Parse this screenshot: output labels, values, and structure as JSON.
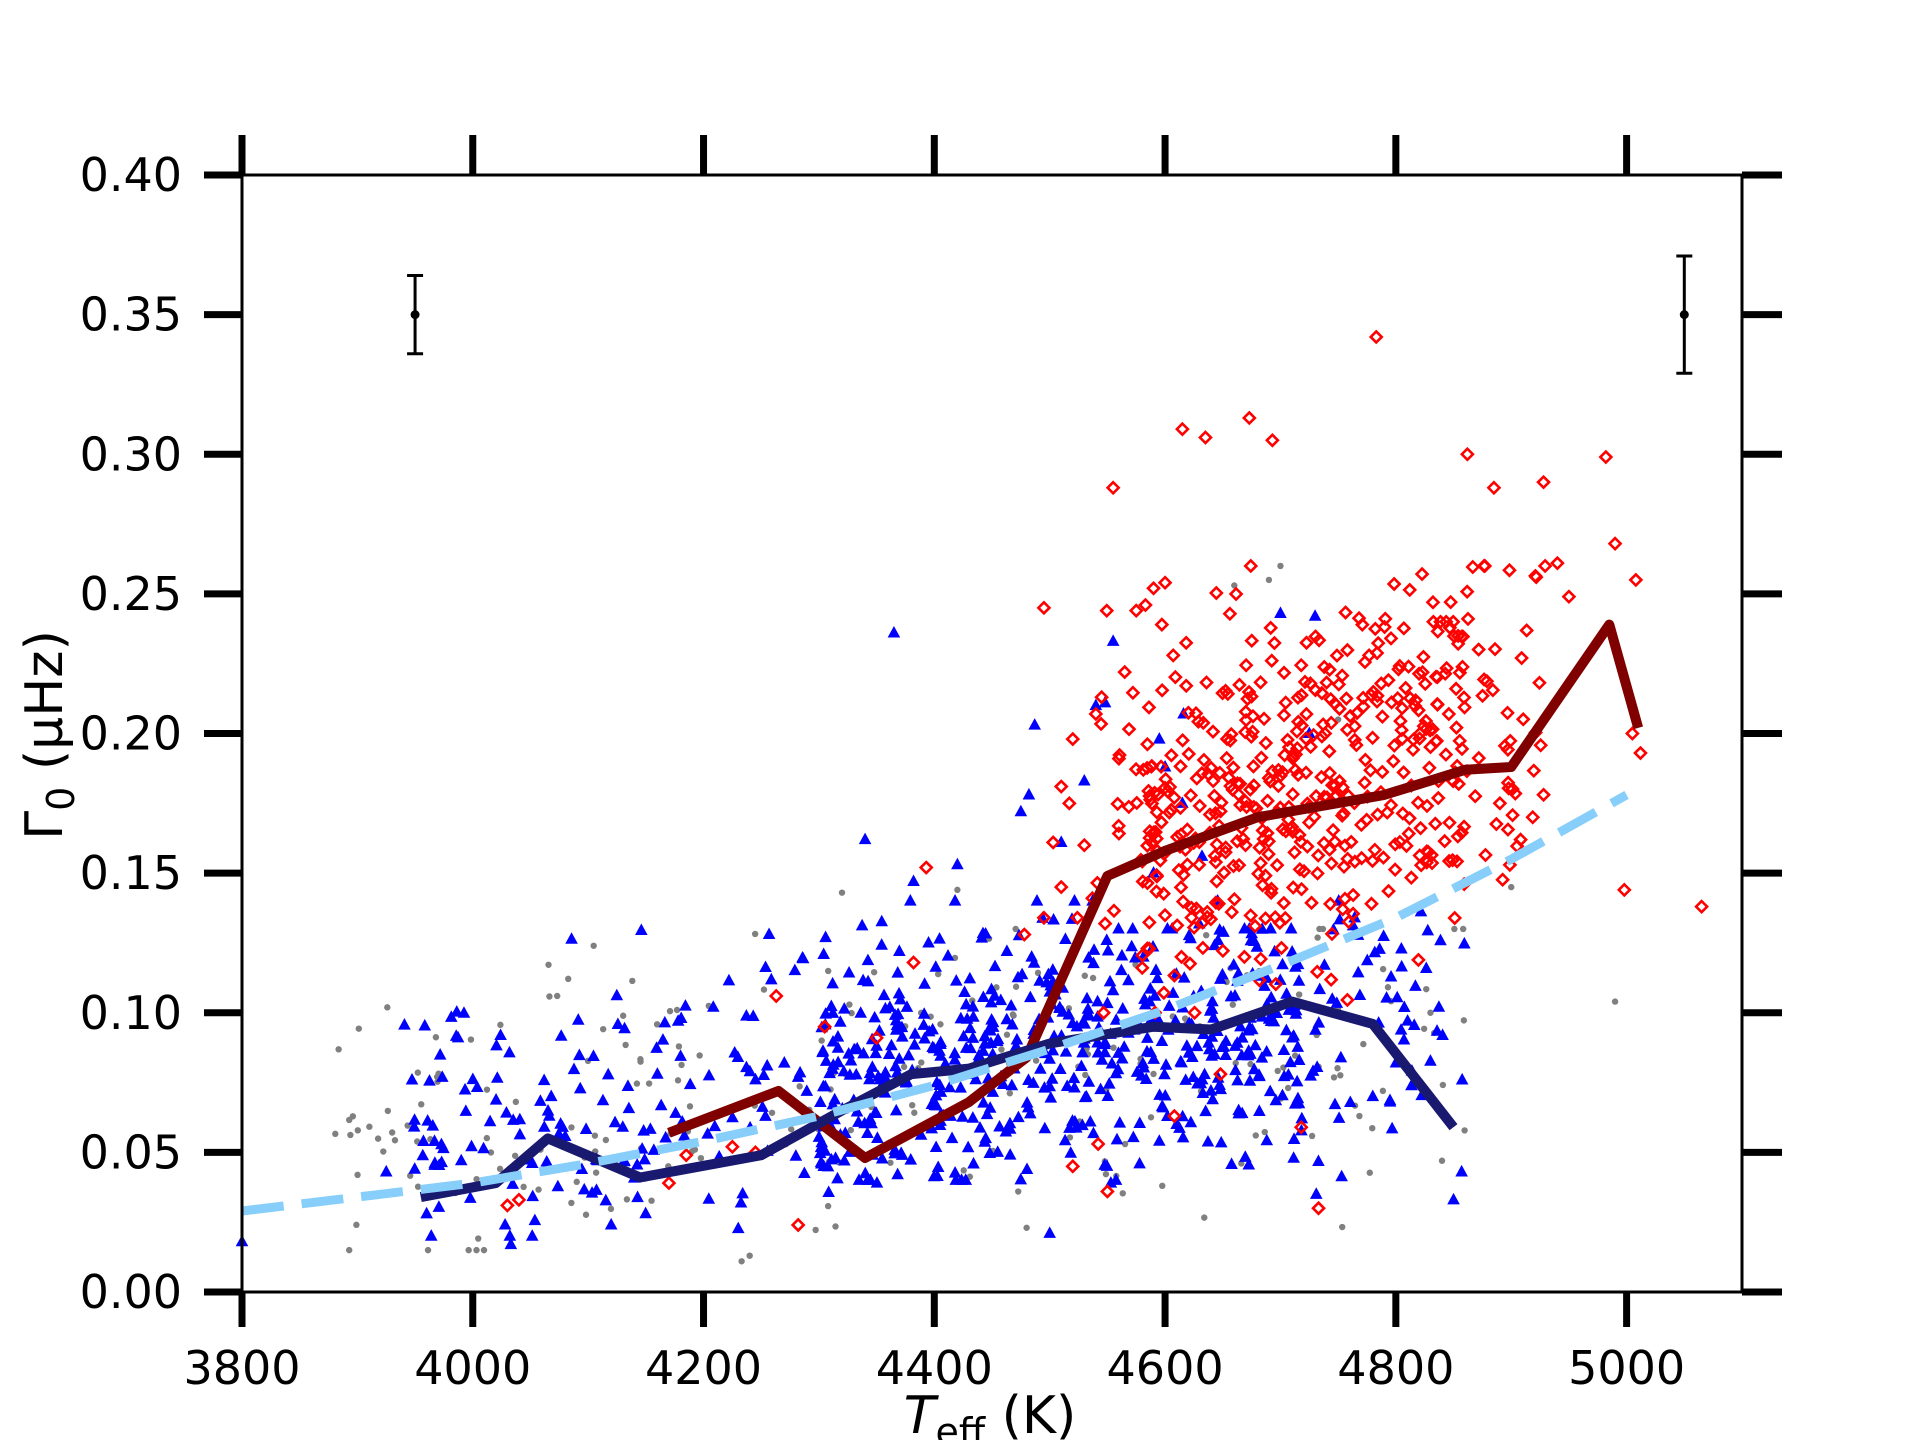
{
  "chart_data": {
    "type": "scatter",
    "title": "",
    "xlim": [
      3800,
      5100
    ],
    "ylim": [
      0.0,
      0.4
    ],
    "x_ticks": [
      3800,
      4000,
      4200,
      4400,
      4600,
      4800,
      5000
    ],
    "y_ticks": [
      0.0,
      0.05,
      0.1,
      0.15,
      0.2,
      0.25,
      0.3,
      0.35,
      0.4
    ],
    "x_tick_labels": [
      "3800",
      "4000",
      "4200",
      "4400",
      "4600",
      "4800",
      "5000"
    ],
    "y_tick_labels": [
      "0.00",
      "0.05",
      "0.10",
      "0.15",
      "0.20",
      "0.25",
      "0.30",
      "0.35",
      "0.40"
    ],
    "xlabel": {
      "symbol": "T",
      "subscript": "eff",
      "unit": " (K)"
    },
    "ylabel": {
      "symbol": "Γ",
      "subscript": "0",
      "unit": " (μHz)"
    },
    "grid": false,
    "colors": {
      "red_clump_markers": "#ff0000",
      "rgb_markers": "#0000ff",
      "other_markers": "#808080",
      "red_clump_trend": "#800000",
      "rgb_trend": "#191970",
      "fit": "#87cefa",
      "errorbar": "#000000"
    },
    "trend_lines": [
      {
        "style": "solid",
        "color": "#800000",
        "points": [
          [
            4170,
            0.057
          ],
          [
            4265,
            0.072
          ],
          [
            4340,
            0.048
          ],
          [
            4430,
            0.068
          ],
          [
            4480,
            0.084
          ],
          [
            4550,
            0.149
          ],
          [
            4600,
            0.158
          ],
          [
            4680,
            0.17
          ],
          [
            4790,
            0.178
          ],
          [
            4860,
            0.187
          ],
          [
            4900,
            0.188
          ],
          [
            4985,
            0.239
          ],
          [
            5010,
            0.202
          ]
        ]
      },
      {
        "style": "solid",
        "color": "#191970",
        "points": [
          [
            3955,
            0.034
          ],
          [
            4020,
            0.039
          ],
          [
            4065,
            0.055
          ],
          [
            4145,
            0.041
          ],
          [
            4250,
            0.049
          ],
          [
            4320,
            0.065
          ],
          [
            4380,
            0.078
          ],
          [
            4430,
            0.08
          ],
          [
            4500,
            0.089
          ],
          [
            4590,
            0.095
          ],
          [
            4640,
            0.094
          ],
          [
            4710,
            0.104
          ],
          [
            4780,
            0.096
          ],
          [
            4850,
            0.059
          ]
        ]
      },
      {
        "style": "dashed",
        "color": "#87cefa",
        "points": [
          [
            3800,
            0.029
          ],
          [
            3900,
            0.034
          ],
          [
            4000,
            0.039
          ],
          [
            4100,
            0.046
          ],
          [
            4200,
            0.054
          ],
          [
            4300,
            0.063
          ],
          [
            4400,
            0.074
          ],
          [
            4500,
            0.087
          ],
          [
            4600,
            0.101
          ],
          [
            4700,
            0.117
          ],
          [
            4800,
            0.134
          ],
          [
            4900,
            0.155
          ],
          [
            5000,
            0.178
          ]
        ]
      }
    ],
    "error_bars": [
      {
        "x": 3950,
        "y": 0.35,
        "err_low": 0.014,
        "err_high": 0.014
      },
      {
        "x": 5050,
        "y": 0.35,
        "err_low": 0.021,
        "err_high": 0.021
      }
    ],
    "scatter_groups": [
      {
        "marker": "diamond-open",
        "color": "#ff0000",
        "count": 520,
        "ranges": [
          [
            4540,
            4930,
            0.1,
            0.26
          ],
          [
            4580,
            4860,
            0.12,
            0.24
          ]
        ],
        "explicit": [
          [
            4495,
            0.245
          ],
          [
            4555,
            0.288
          ],
          [
            4615,
            0.309
          ],
          [
            4635,
            0.306
          ],
          [
            4673,
            0.313
          ],
          [
            4693,
            0.305
          ],
          [
            4783,
            0.342
          ],
          [
            4862,
            0.3
          ],
          [
            4885,
            0.288
          ],
          [
            4982,
            0.299
          ],
          [
            4928,
            0.29
          ],
          [
            5008,
            0.255
          ],
          [
            5065,
            0.138
          ],
          [
            4990,
            0.268
          ],
          [
            5005,
            0.2
          ],
          [
            5012,
            0.193
          ],
          [
            4998,
            0.144
          ],
          [
            4940,
            0.261
          ],
          [
            4950,
            0.249
          ],
          [
            4733,
            0.03
          ],
          [
            4718,
            0.059
          ],
          [
            4648,
            0.078
          ],
          [
            4608,
            0.063
          ],
          [
            4520,
            0.045
          ],
          [
            4542,
            0.053
          ],
          [
            4550,
            0.036
          ],
          [
            4282,
            0.024
          ],
          [
            4263,
            0.106
          ],
          [
            4382,
            0.118
          ],
          [
            4393,
            0.152
          ],
          [
            4350,
            0.091
          ],
          [
            4305,
            0.095
          ],
          [
            4030,
            0.031
          ],
          [
            4040,
            0.033
          ],
          [
            4170,
            0.039
          ],
          [
            4225,
            0.052
          ],
          [
            4245,
            0.05
          ],
          [
            4185,
            0.049
          ],
          [
            4510,
            0.181
          ],
          [
            4520,
            0.198
          ],
          [
            4540,
            0.207
          ],
          [
            4545,
            0.213
          ],
          [
            4560,
            0.191
          ],
          [
            4565,
            0.222
          ],
          [
            4575,
            0.244
          ],
          [
            4583,
            0.246
          ],
          [
            4590,
            0.252
          ],
          [
            4600,
            0.254
          ],
          [
            4510,
            0.145
          ],
          [
            4495,
            0.134
          ],
          [
            4503,
            0.161
          ],
          [
            4517,
            0.175
          ],
          [
            4530,
            0.16
          ],
          [
            4537,
            0.141
          ],
          [
            4524,
            0.134
          ],
          [
            4478,
            0.128
          ]
        ]
      },
      {
        "marker": "triangle",
        "color": "#0000ff",
        "count": 760,
        "ranges": [
          [
            3940,
            4860,
            0.02,
            0.14
          ],
          [
            4300,
            4720,
            0.04,
            0.13
          ]
        ],
        "explicit": [
          [
            3800,
            0.018
          ],
          [
            3925,
            0.043
          ],
          [
            3960,
            0.028
          ],
          [
            3975,
            0.036
          ],
          [
            3990,
            0.047
          ],
          [
            4015,
            0.061
          ],
          [
            4028,
            0.024
          ],
          [
            4033,
            0.017
          ],
          [
            4062,
            0.059
          ],
          [
            4068,
            0.07
          ],
          [
            4130,
            0.059
          ],
          [
            4160,
            0.078
          ],
          [
            4245,
            0.076
          ],
          [
            4270,
            0.082
          ],
          [
            4340,
            0.162
          ],
          [
            4350,
            0.088
          ],
          [
            4365,
            0.236
          ],
          [
            4382,
            0.147
          ],
          [
            4395,
            0.125
          ],
          [
            4420,
            0.153
          ],
          [
            4475,
            0.172
          ],
          [
            4487,
            0.203
          ],
          [
            4482,
            0.178
          ],
          [
            4510,
            0.161
          ],
          [
            4530,
            0.183
          ],
          [
            4540,
            0.21
          ],
          [
            4548,
            0.211
          ],
          [
            4555,
            0.233
          ],
          [
            4590,
            0.15
          ],
          [
            4616,
            0.207
          ],
          [
            4632,
            0.156
          ],
          [
            4700,
            0.243
          ],
          [
            4730,
            0.242
          ],
          [
            4725,
            0.2
          ],
          [
            4615,
            0.175
          ],
          [
            4600,
            0.188
          ],
          [
            4595,
            0.198
          ],
          [
            4780,
            0.07
          ],
          [
            4795,
            0.068
          ],
          [
            4850,
            0.033
          ],
          [
            4857,
            0.043
          ],
          [
            4500,
            0.021
          ],
          [
            4553,
            0.039
          ],
          [
            4595,
            0.054
          ],
          [
            4610,
            0.06
          ]
        ]
      },
      {
        "marker": "dot",
        "color": "#808080",
        "count": 230,
        "ranges": [
          [
            3880,
            4860,
            0.015,
            0.13
          ]
        ],
        "explicit": [
          [
            4233,
            0.011
          ],
          [
            4240,
            0.013
          ],
          [
            4320,
            0.143
          ],
          [
            4420,
            0.144
          ],
          [
            4480,
            0.023
          ],
          [
            4660,
            0.253
          ],
          [
            4690,
            0.255
          ],
          [
            4700,
            0.26
          ],
          [
            4750,
            0.205
          ],
          [
            4990,
            0.104
          ],
          [
            4900,
            0.145
          ],
          [
            4840,
            0.047
          ],
          [
            4830,
            0.1
          ]
        ]
      }
    ]
  }
}
